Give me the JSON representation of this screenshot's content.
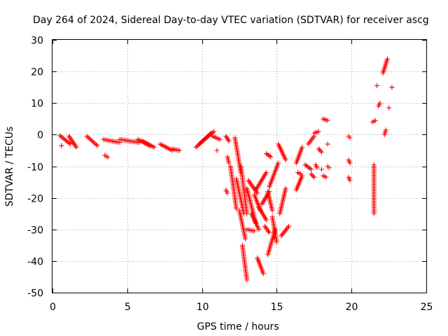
{
  "chart_data": {
    "type": "scatter",
    "title": "Day 264 of 2024, Sidereal Day-to-day VTEC variation (SDTVAR) for receiver ascg",
    "xlabel": "GPS time / hours",
    "ylabel": "SDTVAR / TECUs",
    "xlim": [
      0,
      25
    ],
    "ylim": [
      -50,
      30
    ],
    "xticks": [
      0,
      5,
      10,
      15,
      20,
      25
    ],
    "yticks": [
      -50,
      -40,
      -30,
      -20,
      -10,
      0,
      10,
      20,
      30
    ],
    "grid": true,
    "marker": "+",
    "color": "#ff0000",
    "series": [
      {
        "name": "SDTVAR",
        "segments": [
          {
            "x": [
              0.5,
              1.2
            ],
            "y": [
              -0.3,
              -3.0
            ]
          },
          {
            "x": [
              0.6,
              0.6
            ],
            "y": [
              -3.5,
              -3.5
            ]
          },
          {
            "x": [
              1.1,
              1.6
            ],
            "y": [
              -0.5,
              -4.0
            ]
          },
          {
            "x": [
              2.3,
              3.0
            ],
            "y": [
              -0.5,
              -3.5
            ]
          },
          {
            "x": [
              3.5,
              3.7
            ],
            "y": [
              -6.5,
              -7.2
            ]
          },
          {
            "x": [
              3.4,
              4.5
            ],
            "y": [
              -1.5,
              -2.5
            ]
          },
          {
            "x": [
              4.5,
              5.8
            ],
            "y": [
              -1.5,
              -2.5
            ]
          },
          {
            "x": [
              5.7,
              6.5
            ],
            "y": [
              -1.5,
              -3.5
            ]
          },
          {
            "x": [
              6.0,
              6.8
            ],
            "y": [
              -2.0,
              -4.0
            ]
          },
          {
            "x": [
              7.2,
              8.0
            ],
            "y": [
              -3.0,
              -5.0
            ]
          },
          {
            "x": [
              8.0,
              8.5
            ],
            "y": [
              -4.5,
              -5.0
            ]
          },
          {
            "x": [
              9.6,
              10.6
            ],
            "y": [
              -4.0,
              0.5
            ]
          },
          {
            "x": [
              9.8,
              10.8
            ],
            "y": [
              -3.0,
              1.0
            ]
          },
          {
            "x": [
              10.7,
              11.2
            ],
            "y": [
              -0.5,
              -1.5
            ]
          },
          {
            "x": [
              11.0,
              11.0
            ],
            "y": [
              -5.0,
              -5.0
            ]
          },
          {
            "x": [
              11.6,
              11.8
            ],
            "y": [
              -0.5,
              -2.0
            ]
          },
          {
            "x": [
              11.7,
              11.8
            ],
            "y": [
              -7.0,
              -9.0
            ]
          },
          {
            "x": [
              11.6,
              11.7
            ],
            "y": [
              -17.5,
              -18.5
            ]
          },
          {
            "x": [
              11.9,
              12.3
            ],
            "y": [
              -10.0,
              -23.5
            ]
          },
          {
            "x": [
              12.2,
              12.6
            ],
            "y": [
              -1.0,
              -12.0
            ]
          },
          {
            "x": [
              12.6,
              13.0
            ],
            "y": [
              -10.0,
              -25.0
            ]
          },
          {
            "x": [
              12.5,
              12.9
            ],
            "y": [
              -24.0,
              -33.0
            ]
          },
          {
            "x": [
              12.3,
              12.8
            ],
            "y": [
              -14.0,
              -25.0
            ]
          },
          {
            "x": [
              12.7,
              13.0
            ],
            "y": [
              -35.0,
              -46.0
            ]
          },
          {
            "x": [
              13.0,
              13.6
            ],
            "y": [
              -17.0,
              -28.0
            ]
          },
          {
            "x": [
              13.1,
              13.7
            ],
            "y": [
              -14.5,
              -18.5
            ]
          },
          {
            "x": [
              13.0,
              13.5
            ],
            "y": [
              -30.0,
              -30.5
            ]
          },
          {
            "x": [
              13.3,
              13.8
            ],
            "y": [
              -25.0,
              -30.0
            ]
          },
          {
            "x": [
              13.6,
              14.3
            ],
            "y": [
              -17.5,
              -12.0
            ]
          },
          {
            "x": [
              13.5,
              13.9
            ],
            "y": [
              -19.0,
              -24.0
            ]
          },
          {
            "x": [
              13.7,
              14.1
            ],
            "y": [
              -39.0,
              -44.0
            ]
          },
          {
            "x": [
              13.8,
              14.3
            ],
            "y": [
              -23.0,
              -27.0
            ]
          },
          {
            "x": [
              14.0,
              14.5
            ],
            "y": [
              -22.0,
              -18.0
            ]
          },
          {
            "x": [
              14.2,
              14.5
            ],
            "y": [
              -29.0,
              -31.0
            ]
          },
          {
            "x": [
              14.3,
              14.6
            ],
            "y": [
              -6.0,
              -7.0
            ]
          },
          {
            "x": [
              14.4,
              14.7
            ],
            "y": [
              -18.0,
              -24.0
            ]
          },
          {
            "x": [
              14.5,
              15.1
            ],
            "y": [
              -16.5,
              -9.0
            ]
          },
          {
            "x": [
              14.4,
              14.9
            ],
            "y": [
              -38.0,
              -30.0
            ]
          },
          {
            "x": [
              14.7,
              15.0
            ],
            "y": [
              -26.0,
              -34.0
            ]
          },
          {
            "x": [
              15.2,
              15.6
            ],
            "y": [
              -25.0,
              -17.0
            ]
          },
          {
            "x": [
              15.3,
              15.8
            ],
            "y": [
              -32.0,
              -29.0
            ]
          },
          {
            "x": [
              15.1,
              15.6
            ],
            "y": [
              -3.0,
              -8.0
            ]
          },
          {
            "x": [
              16.3,
              16.7
            ],
            "y": [
              -9.0,
              -4.0
            ]
          },
          {
            "x": [
              16.3,
              16.7
            ],
            "y": [
              -17.5,
              -13.0
            ]
          },
          {
            "x": [
              16.4,
              16.6
            ],
            "y": [
              -12.0,
              -12.5
            ]
          },
          {
            "x": [
              16.9,
              17.3
            ],
            "y": [
              -9.5,
              -11.0
            ]
          },
          {
            "x": [
              17.1,
              17.5
            ],
            "y": [
              -3.0,
              -0.5
            ]
          },
          {
            "x": [
              17.5,
              17.8
            ],
            "y": [
              0.5,
              1.0
            ]
          },
          {
            "x": [
              17.3,
              17.5
            ],
            "y": [
              -12.5,
              -13.5
            ]
          },
          {
            "x": [
              17.6,
              17.7
            ],
            "y": [
              -9.5,
              -10.5
            ]
          },
          {
            "x": [
              17.8,
              18.0
            ],
            "y": [
              -4.5,
              -5.5
            ]
          },
          {
            "x": [
              18.0,
              18.0
            ],
            "y": [
              -11.0,
              -11.0
            ]
          },
          {
            "x": [
              18.1,
              18.4
            ],
            "y": [
              5.0,
              4.5
            ]
          },
          {
            "x": [
              18.1,
              18.3
            ],
            "y": [
              -13.0,
              -13.5
            ]
          },
          {
            "x": [
              18.4,
              18.5
            ],
            "y": [
              -10.0,
              -10.5
            ]
          },
          {
            "x": [
              18.4,
              18.4
            ],
            "y": [
              -3.0,
              -3.0
            ]
          },
          {
            "x": [
              19.8,
              19.9
            ],
            "y": [
              -0.5,
              -1.0
            ]
          },
          {
            "x": [
              19.8,
              19.9
            ],
            "y": [
              -8.0,
              -9.0
            ]
          },
          {
            "x": [
              19.8,
              19.9
            ],
            "y": [
              -13.5,
              -14.5
            ]
          },
          {
            "x": [
              21.4,
              21.6
            ],
            "y": [
              4.0,
              4.5
            ]
          },
          {
            "x": [
              21.5,
              21.5
            ],
            "y": [
              -9.5,
              -25.0
            ]
          },
          {
            "x": [
              21.8,
              21.9
            ],
            "y": [
              9.0,
              10.0
            ]
          },
          {
            "x": [
              21.7,
              21.7
            ],
            "y": [
              15.5,
              15.5
            ]
          },
          {
            "x": [
              22.1,
              22.4
            ],
            "y": [
              19.5,
              24.0
            ]
          },
          {
            "x": [
              22.2,
              22.3
            ],
            "y": [
              0.0,
              1.5
            ]
          },
          {
            "x": [
              22.5,
              22.5
            ],
            "y": [
              8.5,
              8.5
            ]
          },
          {
            "x": [
              22.7,
              22.7
            ],
            "y": [
              15.0,
              15.0
            ]
          }
        ]
      }
    ]
  }
}
